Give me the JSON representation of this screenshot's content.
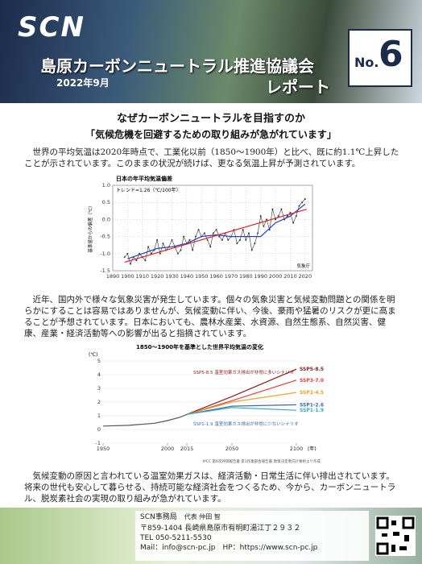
{
  "header": {
    "logo": "SCN",
    "title": "島原カーボンニュートラル推進協議会",
    "subtitle": "レポート",
    "date": "2022年9月",
    "issue_label": "No.",
    "issue_number": "6"
  },
  "heading": "なぜカーボンニュートラルを目指すのか",
  "subheading": "「気候危機を回避するための取り組みが急がれています」",
  "paragraphs": [
    "世界の平均気温は2020年時点で、工業化以前（1850～1900年）と比べ、既に約1.1℃上昇したことが示されています。このままの状況が続けば、更なる気温上昇が予測されています。",
    "近年、国内外で様々な気象災害が発生しています。個々の気象災害と気候変動問題との関係を明らかにすることは容易ではありませんが、気候変動に伴い、今後、豪雨や猛暑のリスクが更に高まることが予想されています。日本においても、農林水産業、水資源、自然生態系、自然災害、健康、産業・経済活動等への影響が出ると指摘されています。",
    "気候変動の原因と言われている温室効果ガスは、経済活動・日常生活に伴い排出されています。将来の世代も安心して暮らせる、持続可能な経済社会をつくるため、今から、カーボンニュートラル、脱炭素社会の実現の取り組みが急がれています。"
  ],
  "figures": [
    {
      "type": "line",
      "title": "日本の年平均気温偏差",
      "annotation": "トレンド=1.26（℃/100年）",
      "y_label": "基準値からの偏差（℃）",
      "source": "気象庁",
      "grid": true,
      "xlim": [
        1890,
        2025
      ],
      "xticks": [
        1890,
        1900,
        1910,
        1920,
        1930,
        1940,
        1950,
        1960,
        1970,
        1980,
        1990,
        2000,
        2010,
        2020
      ],
      "ylim": [
        -1.5,
        1.0
      ],
      "yticks": [
        {
          "value": 1.0,
          "label": "1.0"
        },
        0.5,
        {
          "value": 0.0,
          "label": "0.0"
        },
        -0.5,
        {
          "value": -1.0,
          "label": "-1.0"
        },
        -1.5
      ],
      "series": [
        {
          "color": "#333333",
          "markers": true,
          "x": [
            1898,
            1900,
            1902,
            1904,
            1906,
            1908,
            1910,
            1912,
            1914,
            1916,
            1918,
            1920,
            1922,
            1924,
            1926,
            1928,
            1930,
            1932,
            1934,
            1936,
            1938,
            1940,
            1942,
            1944,
            1946,
            1948,
            1950,
            1952,
            1954,
            1956,
            1958,
            1960,
            1962,
            1964,
            1966,
            1968,
            1970,
            1972,
            1974,
            1976,
            1978,
            1980,
            1982,
            1984,
            1986,
            1988,
            1990,
            1992,
            1994,
            1996,
            1998,
            2000,
            2002,
            2004,
            2006,
            2008,
            2010,
            2012,
            2014,
            2016,
            2018,
            2020
          ],
          "values": [
            -1.1,
            -1.0,
            -1.3,
            -1.1,
            -1.2,
            -1.0,
            -1.1,
            -1.2,
            -0.8,
            -1.0,
            -0.9,
            -0.6,
            -1.0,
            -0.7,
            -0.9,
            -0.8,
            -0.6,
            -0.8,
            -1.0,
            -0.9,
            -0.5,
            -0.7,
            -0.6,
            -0.9,
            -0.5,
            -0.3,
            -0.5,
            -0.4,
            -0.6,
            -0.8,
            -0.4,
            -0.3,
            -0.5,
            -0.6,
            -0.4,
            -0.6,
            -0.5,
            -0.3,
            -0.7,
            -0.6,
            -0.3,
            -0.6,
            -0.4,
            -0.9,
            -0.7,
            -0.4,
            0.1,
            -0.2,
            0.0,
            -0.3,
            0.3,
            0.0,
            0.1,
            0.3,
            0.0,
            0.1,
            0.2,
            -0.1,
            0.1,
            0.4,
            0.5,
            0.6
          ]
        },
        {
          "color": "#2040d0",
          "x": [
            1900,
            1910,
            1920,
            1930,
            1940,
            1950,
            1960,
            1970,
            1980,
            1990,
            2000,
            2010,
            2020
          ],
          "values": [
            -1.15,
            -1.0,
            -0.85,
            -0.8,
            -0.7,
            -0.5,
            -0.45,
            -0.5,
            -0.5,
            -0.5,
            -0.1,
            0.1,
            0.45
          ]
        },
        {
          "color": "#e02020",
          "x": [
            1898,
            2021
          ],
          "values": [
            -1.25,
            0.3
          ]
        }
      ]
    },
    {
      "type": "line",
      "title": "1850～1900年を基準とした世界平均気温の変化",
      "y_unit": "(℃)",
      "x_unit": "(年)",
      "source": "IPCC 第6次評価報告書 第1作業部会報告書 政策決定者向け要約より作成",
      "annotations": [
        "SSP5-8.5 温室効果ガス排出が非常に多いシナリオ",
        "SSP1-1.9 温室効果ガス排出が非常に少ないシナリオ"
      ],
      "xlim": [
        1950,
        2100
      ],
      "xticks": [
        1950,
        2000,
        2015,
        2050,
        2100
      ],
      "ylim": [
        -1,
        5
      ],
      "yticks": [
        5,
        4,
        3,
        2,
        1,
        0,
        -1
      ],
      "series": [
        {
          "color": "#555555",
          "x": [
            1950,
            1970,
            1990,
            2000,
            2010,
            2015
          ],
          "values": [
            0.25,
            0.3,
            0.45,
            0.65,
            0.9,
            1.1
          ]
        },
        {
          "name": "SSP5-8.5",
          "color": "#8b1a1a",
          "x": [
            2015,
            2050,
            2100
          ],
          "values": [
            1.1,
            2.4,
            4.4
          ]
        },
        {
          "name": "SSP3-7.0",
          "color": "#e04030",
          "x": [
            2015,
            2050,
            2100
          ],
          "values": [
            1.1,
            2.1,
            3.6
          ]
        },
        {
          "name": "SSP2-4.5",
          "color": "#f0a030",
          "x": [
            2015,
            2050,
            2100
          ],
          "values": [
            1.1,
            2.0,
            2.7
          ]
        },
        {
          "name": "SSP1-2.6",
          "color": "#3a6cb0",
          "x": [
            2015,
            2050,
            2100
          ],
          "values": [
            1.1,
            1.7,
            1.8
          ]
        },
        {
          "name": "SSP1-1.9",
          "color": "#30a8c8",
          "x": [
            2015,
            2050,
            2100
          ],
          "values": [
            1.1,
            1.6,
            1.4
          ]
        }
      ]
    }
  ],
  "footer": {
    "office": "SCN事務局",
    "representative": "代表 仲田 智",
    "address": "〒859-1404 長崎県島原市有明町湯江丁２９３２",
    "tel": "TEL 050-5211-5530",
    "contact": "Mail：info@scn-pc.jp　HP：https://www.scn-pc.jp"
  }
}
